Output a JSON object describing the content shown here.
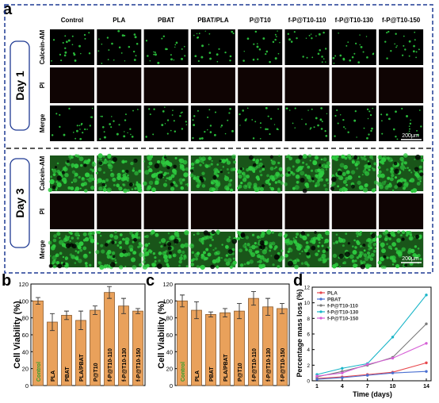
{
  "panel_a": {
    "letter": "a",
    "columns": [
      "Control",
      "PLA",
      "PBAT",
      "PBAT/PLA",
      "P@T10",
      "f-P@T10-110",
      "f-P@T10-130",
      "f-P@T10-150"
    ],
    "row_labels": [
      "Calcein-AM",
      "PI",
      "Merge"
    ],
    "day1_label": "Day 1",
    "day3_label": "Day 3",
    "scalebar": "200μm",
    "colors": {
      "cell_green": "#2ecc40",
      "dead_red": "#c0392b",
      "background": "#000000",
      "frame": "#1f3a93"
    }
  },
  "colors": {
    "bar_fill": "#e9a15b",
    "bar_stroke": "#8a5a2b",
    "control_label": "#2e9e2e"
  },
  "chart_data": [
    {
      "letter": "b",
      "type": "bar",
      "categories": [
        "Control",
        "PLA",
        "PBAT",
        "PLA/PBAT",
        "P@T10",
        "f-P@T10-110",
        "f-P@T10-130",
        "f-P@T10-150"
      ],
      "values": [
        100,
        75,
        83,
        77,
        89,
        110,
        94,
        88
      ],
      "errors": [
        4,
        10,
        5,
        11,
        5,
        7,
        9,
        3
      ],
      "ylabel": "Cell Viability (%)",
      "ylim": [
        0,
        120
      ],
      "yticks": [
        "0",
        "20",
        "40",
        "60",
        "80",
        "100",
        "120"
      ]
    },
    {
      "letter": "c",
      "type": "bar",
      "categories": [
        "Control",
        "PLA",
        "PBAT",
        "PLA/PBAT",
        "P@T10",
        "f-P@T10-110",
        "f-P@T10-130",
        "f-P@T10-150"
      ],
      "values": [
        100,
        89,
        84,
        86,
        88,
        103,
        93,
        91
      ],
      "errors": [
        7,
        10,
        3,
        5,
        9,
        8,
        10,
        6
      ],
      "ylabel": "Cell Viability (%)",
      "ylim": [
        0,
        120
      ],
      "yticks": [
        "0",
        "20",
        "40",
        "60",
        "80",
        "100",
        "120"
      ]
    },
    {
      "letter": "d",
      "type": "line",
      "x": [
        1,
        4,
        7,
        10,
        14
      ],
      "xticks": [
        "1",
        "4",
        "7",
        "10",
        "14"
      ],
      "xlabel": "Time (days)",
      "ylabel": "Percentage mass loss (%)",
      "ylim": [
        0,
        12
      ],
      "yticks": [
        "0",
        "2",
        "4",
        "6",
        "8",
        "10",
        "12"
      ],
      "series": [
        {
          "name": "PLA",
          "color": "#e8474c",
          "values": [
            0.3,
            0.5,
            0.8,
            1.1,
            2.3
          ]
        },
        {
          "name": "PBAT",
          "color": "#4a6fd1",
          "values": [
            0.2,
            0.4,
            0.7,
            1.0,
            1.2
          ]
        },
        {
          "name": "f-P@T10-110",
          "color": "#7a7a7a",
          "values": [
            0.5,
            1.2,
            2.0,
            3.0,
            7.3
          ]
        },
        {
          "name": "f-P@T10-130",
          "color": "#19b5c8",
          "values": [
            0.8,
            1.6,
            2.2,
            5.6,
            11.0
          ]
        },
        {
          "name": "f-P@T10-150",
          "color": "#d65fd6",
          "values": [
            0.6,
            1.0,
            2.1,
            2.9,
            4.8
          ]
        }
      ]
    }
  ]
}
